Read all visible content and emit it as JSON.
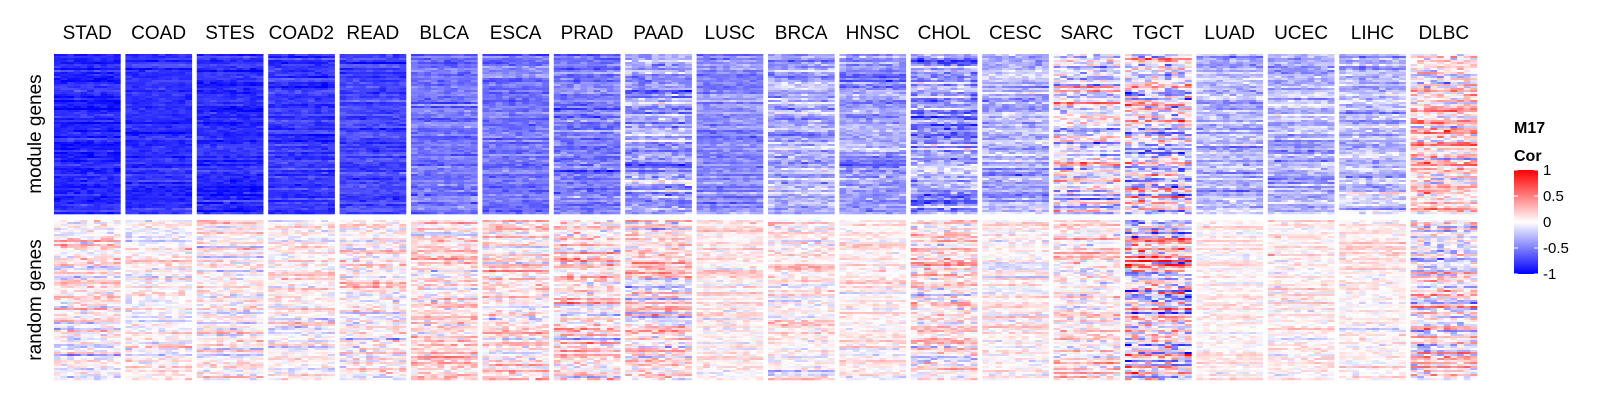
{
  "chart_data": {
    "type": "heatmap",
    "title": "",
    "column_groups": [
      "STAD",
      "COAD",
      "STES",
      "COAD2",
      "READ",
      "BLCA",
      "ESCA",
      "PRAD",
      "PAAD",
      "LUSC",
      "BRCA",
      "HNSC",
      "CHOL",
      "CESC",
      "SARC",
      "TGCT",
      "LUAD",
      "UCEC",
      "LIHC",
      "DLBC"
    ],
    "row_groups": [
      "module genes",
      "random genes"
    ],
    "legend": {
      "title_lines": [
        "M17",
        "Cor"
      ],
      "ticks": [
        1,
        0.5,
        0,
        -0.5,
        -1
      ],
      "tick_labels": [
        "1",
        "0.5",
        "0",
        "-0.5",
        "-1"
      ],
      "colors": {
        "high": "#ff0000",
        "mid": "#ffffff",
        "low": "#0000ff"
      },
      "range": [
        -1,
        1
      ],
      "placement": "right"
    },
    "approx_mean_correlation": {
      "module genes": [
        -0.85,
        -0.82,
        -0.83,
        -0.78,
        -0.72,
        -0.55,
        -0.55,
        -0.55,
        -0.35,
        -0.45,
        -0.3,
        -0.4,
        -0.35,
        -0.3,
        -0.1,
        -0.05,
        -0.3,
        -0.3,
        -0.25,
        0.1
      ],
      "random genes": [
        0.02,
        0.02,
        0.02,
        0.05,
        0.08,
        0.1,
        0.08,
        0.1,
        0.1,
        0.05,
        0.05,
        0.05,
        0.1,
        0.05,
        0.05,
        0.0,
        0.05,
        0.05,
        0.05,
        0.0
      ]
    },
    "approx_spread": {
      "module genes": [
        0.12,
        0.1,
        0.12,
        0.12,
        0.12,
        0.15,
        0.15,
        0.18,
        0.25,
        0.15,
        0.22,
        0.2,
        0.3,
        0.2,
        0.35,
        0.5,
        0.2,
        0.2,
        0.22,
        0.35
      ],
      "random genes": [
        0.25,
        0.2,
        0.22,
        0.2,
        0.25,
        0.25,
        0.25,
        0.3,
        0.3,
        0.15,
        0.2,
        0.15,
        0.3,
        0.15,
        0.25,
        0.55,
        0.12,
        0.15,
        0.15,
        0.35
      ]
    }
  }
}
